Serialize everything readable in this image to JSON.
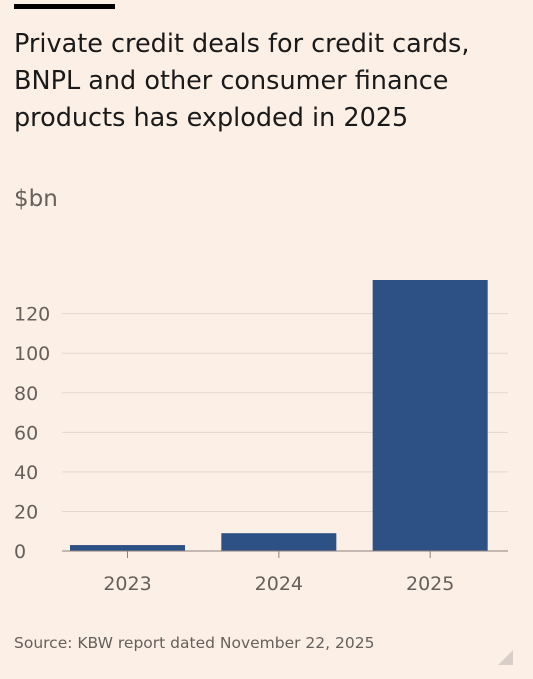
{
  "title": "Private credit deals for credit cards, BNPL and other consumer finance products has exploded in 2025",
  "unit_label": "$bn",
  "source": "Source: KBW report dated November 22, 2025",
  "colors": {
    "background": "#fcefe5",
    "bar": "#2e5185",
    "gridline": "#e2d8d0",
    "axis_text": "#66605c"
  },
  "chart_data": {
    "type": "bar",
    "categories": [
      "2023",
      "2024",
      "2025"
    ],
    "values": [
      3,
      9,
      137
    ],
    "title": "Private credit deals for credit cards, BNPL and other consumer finance products has exploded in 2025",
    "ylabel": "$bn",
    "xlabel": "",
    "ylim": [
      0,
      137
    ],
    "yticks": [
      0,
      20,
      40,
      60,
      80,
      100,
      120
    ],
    "grid": true
  }
}
